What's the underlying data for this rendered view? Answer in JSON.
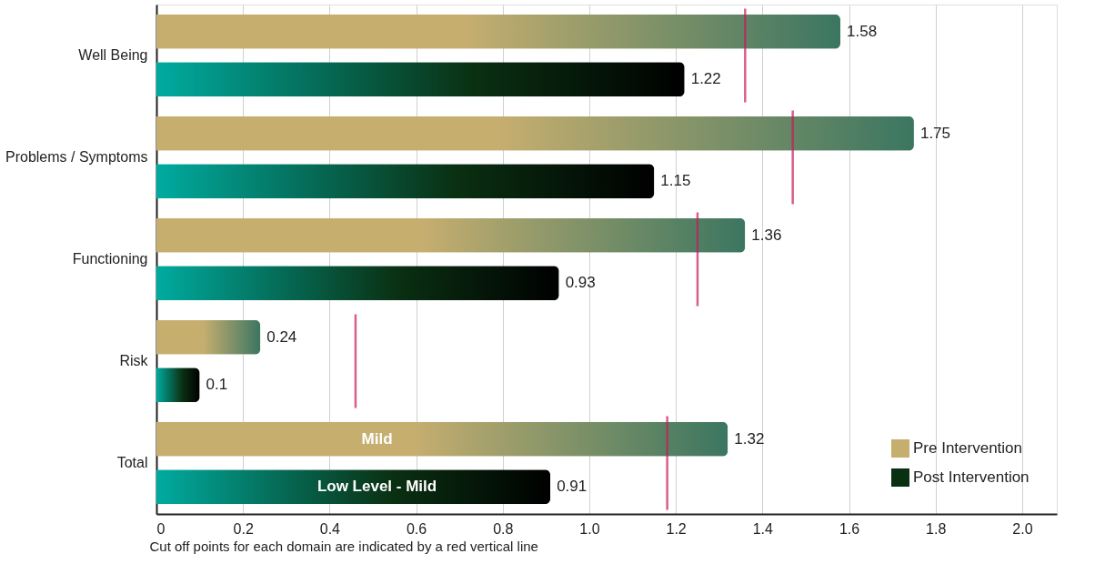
{
  "chart_data": {
    "type": "bar",
    "orientation": "horizontal",
    "categories": [
      "Well Being",
      "Problems / Symptoms",
      "Functioning",
      "Risk",
      "Total"
    ],
    "series": [
      {
        "name": "Pre Intervention",
        "color": "#c6ae6f",
        "values": [
          1.58,
          1.75,
          1.36,
          0.24,
          1.32
        ]
      },
      {
        "name": "Post Intervention",
        "color": "#0a3012",
        "values": [
          1.22,
          1.15,
          0.93,
          0.1,
          0.91
        ]
      }
    ],
    "xlim": [
      0,
      2.08
    ],
    "xticks": [
      0,
      0.2,
      0.4,
      0.6,
      0.8,
      {
        "value": 1,
        "label": "1.0"
      },
      1.2,
      1.4,
      1.6,
      1.8,
      {
        "value": 2,
        "label": "2.0"
      }
    ],
    "grid": "x",
    "legend": "bottom right",
    "data_labels": true,
    "ref_lines": [
      {
        "axis": "x",
        "value": 1.36,
        "color": "#c8195a"
      },
      {
        "axis": "x",
        "value": 1.47,
        "color": "#c8195a"
      },
      {
        "axis": "x",
        "value": 1.25,
        "color": "#c8195a"
      },
      {
        "axis": "x",
        "value": 0.46,
        "color": "#c8195a"
      },
      {
        "axis": "x",
        "value": 1.18,
        "color": "#c8195a"
      }
    ],
    "annotations": [
      "Mild",
      "Low Level - Mild",
      "Cut off points for each domain are indicated by a red vertical line"
    ]
  }
}
